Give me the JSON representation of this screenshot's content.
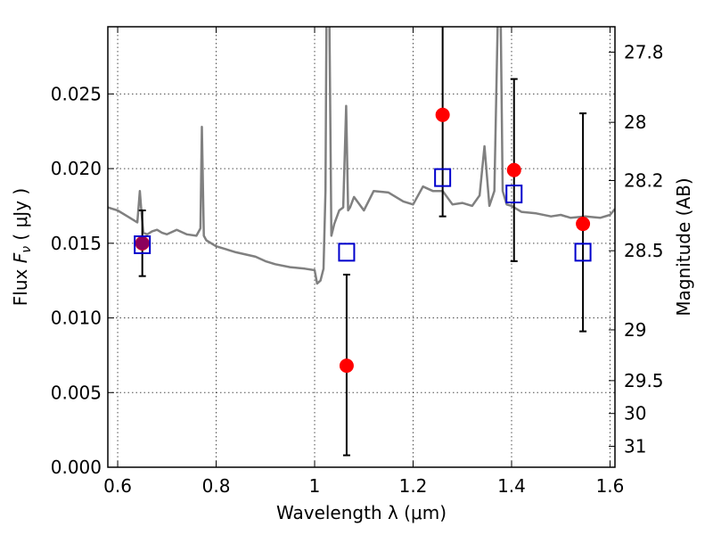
{
  "chart_data": {
    "type": "scatter",
    "xlabel": "Wavelength  λ (μm)",
    "ylabel_prefix": "Flux  ",
    "ylabel_symbol": "F",
    "ylabel_sub": "ν",
    "ylabel_suffix": "  ( μJy )",
    "y2label": "Magnitude (AB)",
    "xlim": [
      0.58,
      1.61
    ],
    "ylim": [
      0.0,
      0.0295
    ],
    "grid": true,
    "x_ticks": [
      {
        "value": 0.6,
        "label": "0.6"
      },
      {
        "value": 0.8,
        "label": "0.8"
      },
      {
        "value": 1.0,
        "label": "1"
      },
      {
        "value": 1.2,
        "label": "1.2"
      },
      {
        "value": 1.4,
        "label": "1.4"
      },
      {
        "value": 1.6,
        "label": "1.6"
      }
    ],
    "y_ticks": [
      {
        "value": 0.0,
        "label": "0.000"
      },
      {
        "value": 0.005,
        "label": "0.005"
      },
      {
        "value": 0.01,
        "label": "0.010"
      },
      {
        "value": 0.015,
        "label": "0.015"
      },
      {
        "value": 0.02,
        "label": "0.020"
      },
      {
        "value": 0.025,
        "label": "0.025"
      }
    ],
    "y2_ticks": [
      {
        "flux": 0.0278,
        "label": "27.8"
      },
      {
        "flux": 0.0231,
        "label": "28"
      },
      {
        "flux": 0.0192,
        "label": "28.2"
      },
      {
        "flux": 0.0145,
        "label": "28.5"
      },
      {
        "flux": 0.0092,
        "label": "29"
      },
      {
        "flux": 0.0058,
        "label": "29.5"
      },
      {
        "flux": 0.0036,
        "label": "30"
      },
      {
        "flux": 0.0014,
        "label": "31"
      }
    ],
    "series": [
      {
        "kind": "observed",
        "marker": "filled-circle",
        "color": "#ff0000",
        "x": [
          0.65,
          1.065,
          1.26,
          1.405,
          1.545
        ],
        "y": [
          0.015,
          0.0068,
          0.0236,
          0.0199,
          0.0163
        ],
        "yerr_low": [
          0.0128,
          0.0008,
          0.0168,
          0.0138,
          0.0091
        ],
        "yerr_high": [
          0.0172,
          0.0129,
          0.0302,
          0.026,
          0.0237
        ]
      },
      {
        "kind": "model-photometry",
        "marker": "open-square",
        "color": "#0000cc",
        "x": [
          0.65,
          1.065,
          1.26,
          1.405,
          1.545
        ],
        "y": [
          0.0149,
          0.0144,
          0.0194,
          0.0183,
          0.0144
        ]
      },
      {
        "kind": "model-spectrum",
        "color": "#808080",
        "x": [
          0.58,
          0.6,
          0.62,
          0.64,
          0.645,
          0.648,
          0.652,
          0.66,
          0.67,
          0.68,
          0.69,
          0.7,
          0.72,
          0.74,
          0.76,
          0.768,
          0.771,
          0.775,
          0.78,
          0.8,
          0.84,
          0.88,
          0.9,
          0.92,
          0.95,
          0.98,
          1.0,
          1.005,
          1.012,
          1.018,
          1.022,
          1.024,
          1.03,
          1.034,
          1.04,
          1.05,
          1.058,
          1.064,
          1.068,
          1.072,
          1.08,
          1.1,
          1.12,
          1.15,
          1.18,
          1.2,
          1.22,
          1.24,
          1.26,
          1.28,
          1.3,
          1.32,
          1.335,
          1.345,
          1.355,
          1.365,
          1.372,
          1.378,
          1.382,
          1.39,
          1.4,
          1.42,
          1.45,
          1.48,
          1.5,
          1.52,
          1.55,
          1.58,
          1.6,
          1.61
        ],
        "y": [
          0.0174,
          0.0172,
          0.0168,
          0.0164,
          0.0185,
          0.0172,
          0.0157,
          0.0156,
          0.0158,
          0.0159,
          0.0157,
          0.0156,
          0.0159,
          0.0156,
          0.0155,
          0.016,
          0.0228,
          0.0155,
          0.0152,
          0.0148,
          0.0144,
          0.0141,
          0.0138,
          0.0136,
          0.0134,
          0.0133,
          0.0132,
          0.0123,
          0.0125,
          0.0133,
          0.0185,
          0.03,
          0.03,
          0.0155,
          0.0163,
          0.0172,
          0.0174,
          0.0242,
          0.0172,
          0.0174,
          0.0181,
          0.0172,
          0.0185,
          0.0184,
          0.0178,
          0.0176,
          0.0188,
          0.0185,
          0.0185,
          0.0176,
          0.0177,
          0.0175,
          0.0182,
          0.0215,
          0.0175,
          0.0185,
          0.03,
          0.03,
          0.0185,
          0.0176,
          0.0175,
          0.0171,
          0.017,
          0.0168,
          0.0169,
          0.0167,
          0.0168,
          0.0167,
          0.0169,
          0.0173
        ]
      }
    ]
  }
}
